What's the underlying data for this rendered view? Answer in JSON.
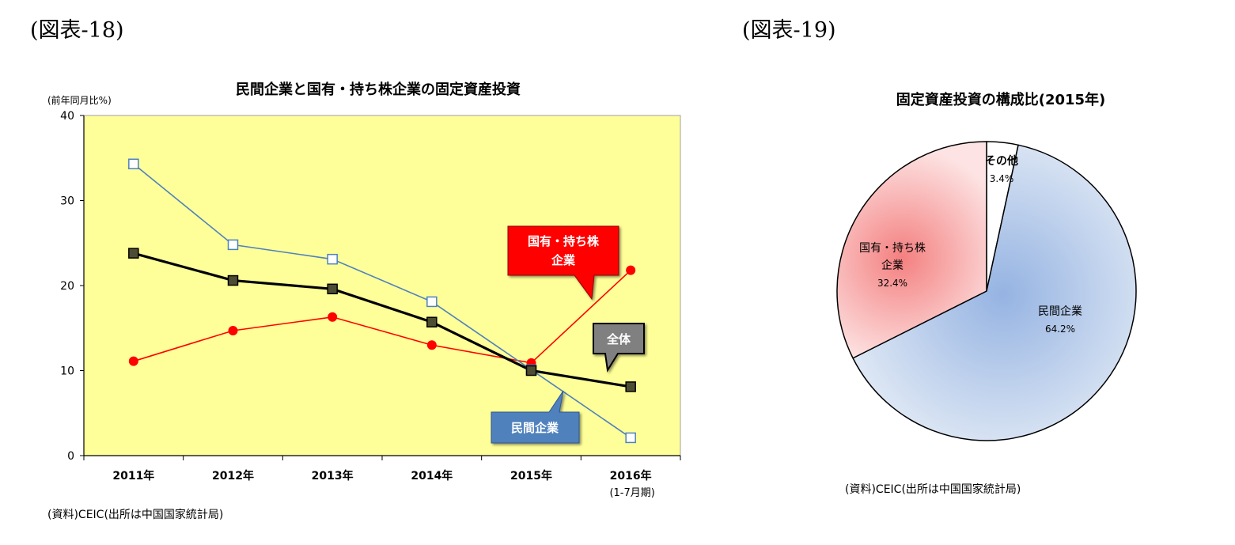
{
  "figures": {
    "left_label": "(図表-18)",
    "right_label": "(図表-19)"
  },
  "chart_data": [
    {
      "type": "line",
      "title": "民間企業と国有・持ち株企業の固定資産投資",
      "ylabel": "(前年同月比%)",
      "xlabel": "",
      "categories": [
        "2011年",
        "2012年",
        "2013年",
        "2014年",
        "2015年",
        "2016年"
      ],
      "category_sublabels": [
        "",
        "",
        "",
        "",
        "",
        "(1-7月期)"
      ],
      "ylim": [
        0,
        40
      ],
      "yticks": [
        0,
        10,
        20,
        30,
        40
      ],
      "grid": false,
      "background": "#ffff99",
      "series": [
        {
          "name": "民間企業",
          "color": "#4f81bd",
          "marker": "open-square",
          "values": [
            34.3,
            24.8,
            23.1,
            18.1,
            10.1,
            2.1
          ]
        },
        {
          "name": "国有・持ち株企業",
          "color": "#ff0000",
          "marker": "circle",
          "values": [
            11.1,
            14.7,
            16.3,
            13.0,
            10.9,
            21.8
          ]
        },
        {
          "name": "全体",
          "color": "#000000",
          "marker": "square",
          "values": [
            23.8,
            20.6,
            19.6,
            15.7,
            10.0,
            8.1
          ]
        }
      ],
      "callouts": [
        {
          "lines": [
            "国有・持ち株",
            "企業"
          ],
          "fill": "#ff0000",
          "text_color": "#ffffff"
        },
        {
          "lines": [
            "全体"
          ],
          "fill": "#808080",
          "text_color": "#ffffff"
        },
        {
          "lines": [
            "民間企業"
          ],
          "fill": "#4f81bd",
          "text_color": "#ffffff"
        }
      ],
      "source": "(資料)CEIC(出所は中国国家統計局)"
    },
    {
      "type": "pie",
      "title": "固定資産投資の構成比(2015年)",
      "slices": [
        {
          "label": "その他",
          "value": 3.4,
          "value_label": "3.4%",
          "color": "#ffffff"
        },
        {
          "label": "民間企業",
          "value": 64.2,
          "value_label": "64.2%",
          "color": "#a4bde6"
        },
        {
          "label": "国有・持ち株\n企業",
          "value": 32.4,
          "value_label": "32.4%",
          "color": "#f7a1a1"
        }
      ],
      "source": "(資料)CEIC(出所は中国国家統計局)"
    }
  ]
}
